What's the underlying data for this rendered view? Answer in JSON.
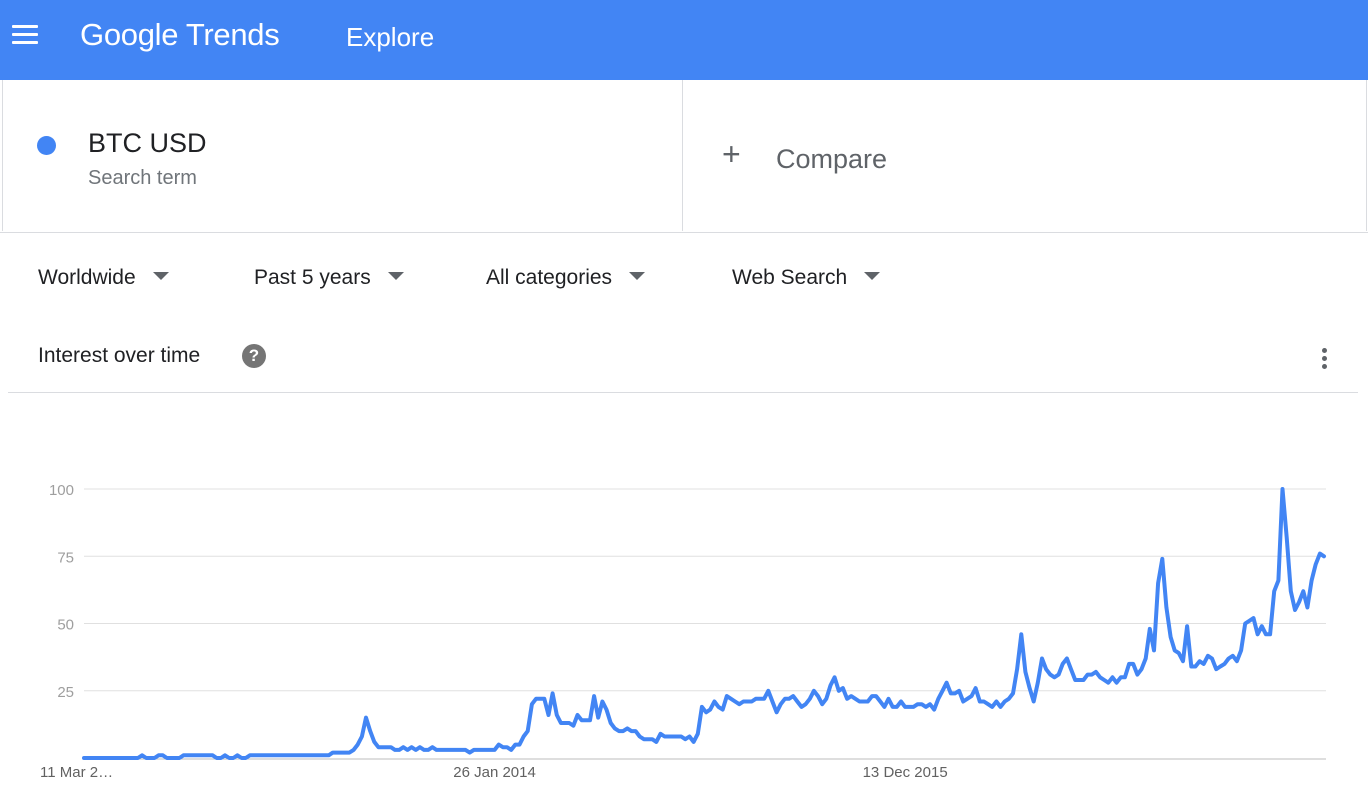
{
  "header": {
    "logo": "Google Trends",
    "page": "Explore"
  },
  "search_term": {
    "label": "BTC USD",
    "sublabel": "Search term",
    "color": "#4285f4"
  },
  "compare": {
    "label": "Compare"
  },
  "filters": {
    "region": "Worldwide",
    "time": "Past 5 years",
    "category": "All categories",
    "property": "Web Search"
  },
  "section": {
    "title": "Interest over time"
  },
  "chart_data": {
    "type": "line",
    "series": [
      {
        "color": "#4285f4",
        "values": [
          0,
          0,
          0,
          0,
          0,
          0,
          0,
          0,
          0,
          0,
          0,
          0,
          0,
          0,
          1,
          0,
          0,
          0,
          1,
          1,
          0,
          0,
          0,
          0,
          1,
          1,
          1,
          1,
          1,
          1,
          1,
          1,
          0,
          0,
          1,
          0,
          0,
          1,
          0,
          0,
          1,
          1,
          1,
          1,
          1,
          1,
          1,
          1,
          1,
          1,
          1,
          1,
          1,
          1,
          1,
          1,
          1,
          1,
          1,
          1,
          2,
          2,
          2,
          2,
          2,
          3,
          5,
          8,
          15,
          10,
          6,
          4,
          4,
          4,
          4,
          3,
          3,
          4,
          3,
          4,
          3,
          4,
          3,
          3,
          4,
          3,
          3,
          3,
          3,
          3,
          3,
          3,
          3,
          2,
          3,
          3,
          3,
          3,
          3,
          3,
          5,
          4,
          4,
          3,
          5,
          5,
          8,
          10,
          20,
          22,
          22,
          22,
          16,
          24,
          16,
          13,
          13,
          13,
          12,
          16,
          14,
          14,
          14,
          23,
          15,
          21,
          18,
          13,
          11,
          10,
          10,
          11,
          10,
          10,
          8,
          7,
          7,
          7,
          6,
          9,
          8,
          8,
          8,
          8,
          8,
          7,
          8,
          6,
          9,
          19,
          17,
          18,
          21,
          19,
          18,
          23,
          22,
          21,
          20,
          21,
          21,
          21,
          22,
          22,
          22,
          25,
          21,
          17,
          20,
          22,
          22,
          23,
          21,
          19,
          20,
          22,
          25,
          23,
          20,
          22,
          27,
          30,
          25,
          26,
          22,
          23,
          22,
          21,
          21,
          21,
          23,
          23,
          21,
          19,
          22,
          19,
          19,
          21,
          19,
          19,
          19,
          20,
          20,
          19,
          20,
          18,
          22,
          25,
          28,
          24,
          24,
          25,
          21,
          22,
          23,
          26,
          21,
          21,
          20,
          19,
          21,
          19,
          21,
          22,
          24,
          33,
          46,
          32,
          26,
          21,
          28,
          37,
          33,
          31,
          30,
          31,
          35,
          37,
          33,
          29,
          29,
          29,
          31,
          31,
          32,
          30,
          29,
          28,
          30,
          28,
          30,
          30,
          35,
          35,
          31,
          33,
          37,
          48,
          40,
          65,
          74,
          56,
          45,
          40,
          39,
          36,
          49,
          34,
          34,
          36,
          35,
          38,
          37,
          33,
          34,
          35,
          37,
          38,
          36,
          40,
          50,
          51,
          52,
          46,
          49,
          46,
          46,
          62,
          66,
          100,
          82,
          62,
          55,
          58,
          62,
          56,
          66,
          72,
          76,
          75
        ]
      }
    ],
    "y_ticks": [
      "100",
      "75",
      "50",
      "25"
    ],
    "y_tick_values": [
      100,
      75,
      50,
      25
    ],
    "x_labels": [
      "11 Mar 2…",
      "26 Jan 2014",
      "13 Dec 2015"
    ],
    "x_label_indices": [
      0,
      99,
      198
    ],
    "ylim": [
      0,
      100
    ],
    "grid": true
  }
}
